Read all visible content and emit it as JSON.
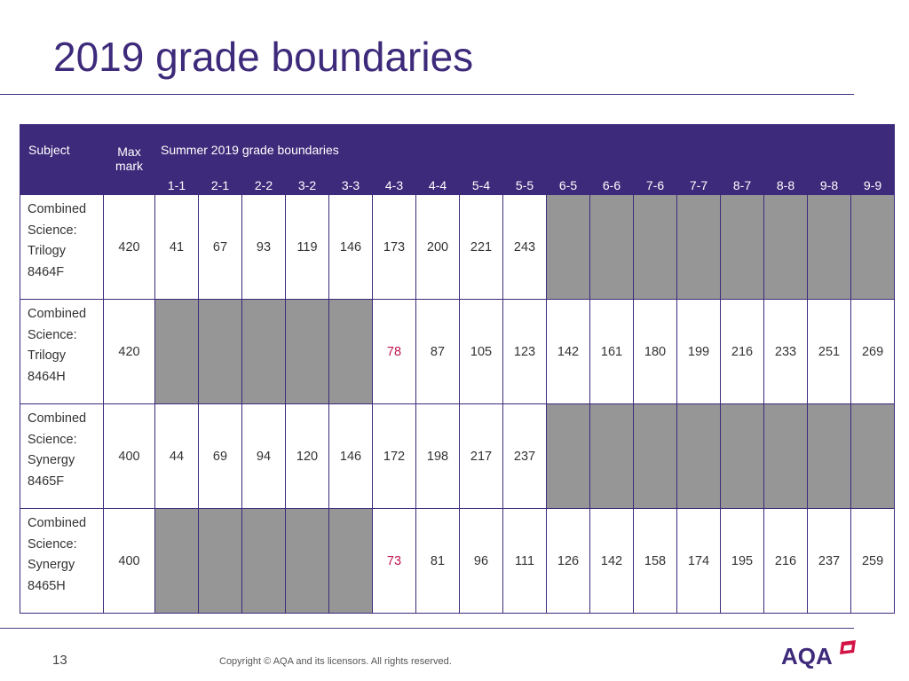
{
  "slide": {
    "title": "2019 grade boundaries",
    "page_number": "13",
    "copyright": "Copyright © AQA and its licensors. All rights reserved.",
    "logo_text": "AQA",
    "colors": {
      "primary": "#3d2a7a",
      "shaded_cell": "#969696",
      "low_value": "#c0164f"
    }
  },
  "table": {
    "headers": {
      "subject": "Subject",
      "max_mark_line1": "Max",
      "max_mark_line2": "mark",
      "summer": "Summer 2019 grade boundaries"
    },
    "grades": [
      "1-1",
      "2-1",
      "2-2",
      "3-2",
      "3-3",
      "4-3",
      "4-4",
      "5-4",
      "5-5",
      "6-5",
      "6-6",
      "7-6",
      "7-7",
      "8-7",
      "8-8",
      "9-8",
      "9-9"
    ],
    "rows": [
      {
        "subject_lines": [
          "Combined",
          "Science:",
          "Trilogy",
          "8464F"
        ],
        "max_mark": "420",
        "values": [
          "41",
          "67",
          "93",
          "119",
          "146",
          "173",
          "200",
          "221",
          "243",
          null,
          null,
          null,
          null,
          null,
          null,
          null,
          null
        ],
        "highlight_index": null
      },
      {
        "subject_lines": [
          "Combined",
          "Science:",
          "Trilogy",
          "8464H"
        ],
        "max_mark": "420",
        "values": [
          null,
          null,
          null,
          null,
          null,
          "78",
          "87",
          "105",
          "123",
          "142",
          "161",
          "180",
          "199",
          "216",
          "233",
          "251",
          "269"
        ],
        "highlight_index": 5
      },
      {
        "subject_lines": [
          "Combined",
          "Science:",
          "Synergy",
          "8465F"
        ],
        "max_mark": "400",
        "values": [
          "44",
          "69",
          "94",
          "120",
          "146",
          "172",
          "198",
          "217",
          "237",
          null,
          null,
          null,
          null,
          null,
          null,
          null,
          null
        ],
        "highlight_index": null
      },
      {
        "subject_lines": [
          "Combined",
          "Science:",
          "Synergy",
          "8465H"
        ],
        "max_mark": "400",
        "values": [
          null,
          null,
          null,
          null,
          null,
          "73",
          "81",
          "96",
          "111",
          "126",
          "142",
          "158",
          "174",
          "195",
          "216",
          "237",
          "259"
        ],
        "highlight_index": 5
      }
    ]
  }
}
